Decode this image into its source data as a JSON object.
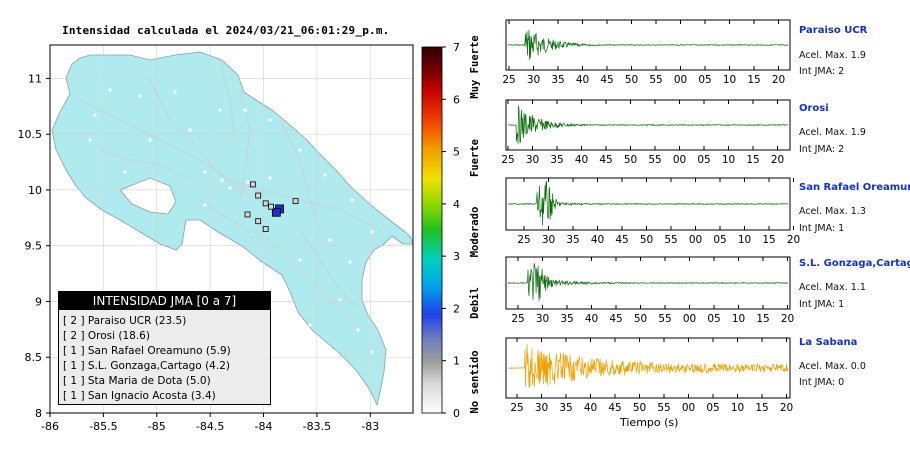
{
  "map": {
    "title": "Intensidad calculada el 2024/03/21_06:01:29_p.m.",
    "x_ticks": [
      "-86",
      "-85.5",
      "-85",
      "-84.5",
      "-84",
      "-83.5",
      "-83"
    ],
    "y_ticks": [
      "11",
      "10.5",
      "10",
      "9.5",
      "9",
      "8.5",
      "8"
    ],
    "lon_range": [
      -86,
      -82.6
    ],
    "lat_range": [
      8,
      11.3
    ],
    "land_color": "#aeeaee",
    "grid": true
  },
  "colorbar": {
    "ticks": [
      "0",
      "1",
      "2",
      "3",
      "4",
      "5",
      "6",
      "7"
    ],
    "category_labels": [
      "No sentido",
      "Debil",
      "Moderado",
      "Fuerte",
      "Muy Fuerte"
    ]
  },
  "legend": {
    "header": "INTENSIDAD JMA [0 a 7]",
    "rows": [
      "[ 2 ] Paraiso UCR (23.5)",
      "[ 2 ] Orosi (18.6)",
      "[ 1 ] San Rafael Oreamuno (5.9)",
      "[ 1 ] S.L. Gonzaga,Cartago (4.2)",
      "[ 1 ] Sta Maria de Dota (5.0)",
      "[ 1 ] San Ignacio Acosta (3.4)"
    ]
  },
  "traces": {
    "xlabel": "Tiempo (s)",
    "stations": [
      {
        "name": "Paraiso UCR",
        "accel": "Acel. Max. 1.9",
        "jma": "Int JMA: 2",
        "color": "#0a6e0a",
        "ticks": [
          "25",
          "30",
          "35",
          "40",
          "45",
          "50",
          "55",
          "00",
          "05",
          "10",
          "15",
          "20"
        ]
      },
      {
        "name": "Orosi",
        "accel": "Acel. Max. 1.9",
        "jma": "Int JMA: 2",
        "color": "#0a6e0a",
        "ticks": [
          "25",
          "30",
          "35",
          "40",
          "45",
          "50",
          "55",
          "00",
          "05",
          "10",
          "15",
          "20"
        ]
      },
      {
        "name": "San Rafael Oreamuno",
        "accel": "Acel. Max. 1.3",
        "jma": "Int JMA: 1",
        "color": "#0a6e0a",
        "ticks": [
          "25",
          "30",
          "35",
          "40",
          "45",
          "50",
          "55",
          "00",
          "05",
          "10",
          "15",
          "20"
        ]
      },
      {
        "name": "S.L. Gonzaga,Cartago",
        "accel": "Acel. Max. 1.1",
        "jma": "Int JMA: 1",
        "color": "#0a6e0a",
        "ticks": [
          "25",
          "30",
          "35",
          "40",
          "45",
          "50",
          "55",
          "00",
          "05",
          "10",
          "15",
          "20"
        ]
      },
      {
        "name": "La Sabana",
        "accel": "Acel. Max. 0.0",
        "jma": "Int JMA: 0",
        "color": "#f0a000",
        "ticks": [
          "25",
          "30",
          "35",
          "40",
          "45",
          "50",
          "55",
          "00",
          "05",
          "10",
          "15",
          "20"
        ]
      }
    ]
  },
  "chart_data": [
    {
      "type": "scatter",
      "title": "Intensidad calculada el 2024/03/21_06:01:29_p.m.",
      "xlabel": "",
      "ylabel": "",
      "xlim": [
        -86,
        -82.6
      ],
      "ylim": [
        8,
        11.3
      ],
      "grid": true,
      "legend_position": "bottom-left",
      "series": [
        {
          "name": "stations",
          "points": [
            {
              "x": -83.85,
              "y": 9.83,
              "intensity": 2
            },
            {
              "x": -83.88,
              "y": 9.8,
              "intensity": 2
            },
            {
              "x": -83.93,
              "y": 9.85,
              "intensity": 1
            },
            {
              "x": -83.98,
              "y": 9.88,
              "intensity": 1
            },
            {
              "x": -84.05,
              "y": 9.95,
              "intensity": 1
            },
            {
              "x": -84.1,
              "y": 10.05,
              "intensity": 1
            },
            {
              "x": -84.15,
              "y": 9.78,
              "intensity": 1
            },
            {
              "x": -84.05,
              "y": 9.72,
              "intensity": 1
            },
            {
              "x": -83.98,
              "y": 9.65,
              "intensity": 1
            },
            {
              "x": -83.7,
              "y": 9.9,
              "intensity": 1
            }
          ]
        }
      ]
    },
    {
      "type": "line",
      "title": "",
      "xlabel": "Tiempo (s)",
      "ylabel": "",
      "series_names": [
        "Paraiso UCR",
        "Orosi",
        "San Rafael Oreamuno",
        "S.L. Gonzaga,Cartago",
        "La Sabana"
      ],
      "peak_acceleration": [
        1.9,
        1.9,
        1.3,
        1.1,
        0.0
      ],
      "jma_intensity": [
        2,
        2,
        1,
        1,
        0
      ]
    }
  ]
}
